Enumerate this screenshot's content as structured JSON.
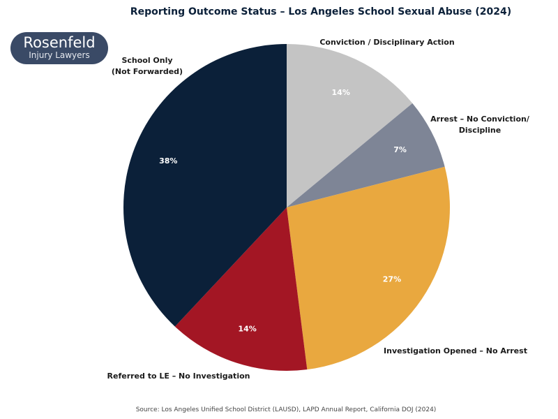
{
  "chart_data": {
    "type": "pie",
    "title": "Reporting Outcome Status – Los Angeles School Sexual Abuse (2024)",
    "start": "top",
    "direction": "clockwise",
    "slices": [
      {
        "label": [
          "Conviction / Disciplinary Action"
        ],
        "value": 14,
        "pct_label": "14%",
        "color": "#c4c4c4"
      },
      {
        "label": [
          "Arrest – No Conviction/",
          "Discipline"
        ],
        "value": 7,
        "pct_label": "7%",
        "color": "#7e8596"
      },
      {
        "label": [
          "Investigation Opened – No Arrest"
        ],
        "value": 27,
        "pct_label": "27%",
        "color": "#e9a83f"
      },
      {
        "label": [
          "Referred to LE – No Investigation"
        ],
        "value": 14,
        "pct_label": "14%",
        "color": "#a31624"
      },
      {
        "label": [
          "School Only",
          "(Not Forwarded)"
        ],
        "value": 38,
        "pct_label": "38%",
        "color": "#0b2039"
      }
    ],
    "source": "Source: Los Angeles Unified School District (LAUSD), LAPD Annual Report, California DOJ (2024)"
  },
  "logo": {
    "line1": "Rosenfeld",
    "line2": "Injury Lawyers"
  }
}
